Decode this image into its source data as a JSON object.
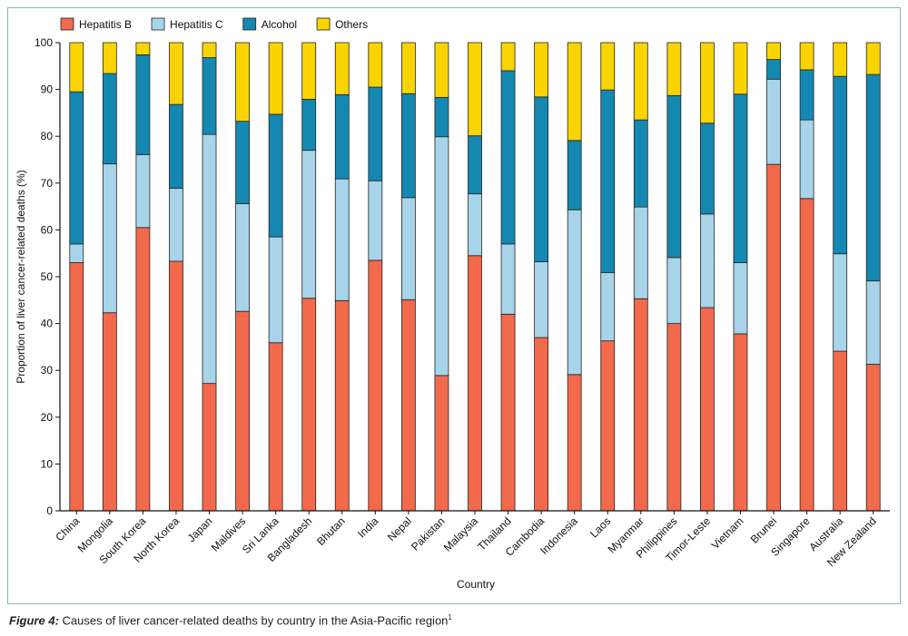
{
  "chart_data": {
    "type": "bar",
    "stacked": true,
    "xlabel": "Country",
    "ylabel": "Proportion of liver cancer-related deaths (%)",
    "ylim": [
      0,
      100
    ],
    "yticks": [
      0,
      10,
      20,
      30,
      40,
      50,
      60,
      70,
      80,
      90,
      100
    ],
    "legend_position": "top-left",
    "categories": [
      "China",
      "Mongolia",
      "South Korea",
      "North Korea",
      "Japan",
      "Maldives",
      "Sri Lanka",
      "Bangladesh",
      "Bhutan",
      "India",
      "Nepal",
      "Pakistan",
      "Malaysia",
      "Thailand",
      "Cambodia",
      "Indonesia",
      "Laos",
      "Myanmar",
      "Philippines",
      "Timor-Leste",
      "Vietnam",
      "Brunei",
      "Singapore",
      "Australia",
      "New Zealand"
    ],
    "series": [
      {
        "name": "Hepatitis B",
        "color": "#f26a4b",
        "values": [
          53.0,
          42.3,
          60.5,
          53.3,
          27.2,
          42.6,
          35.9,
          45.4,
          44.9,
          53.5,
          45.1,
          28.9,
          54.5,
          42.0,
          37.0,
          29.1,
          36.3,
          45.3,
          40.0,
          43.4,
          37.8,
          74.0,
          66.7,
          34.1,
          31.3
        ]
      },
      {
        "name": "Hepatitis C",
        "color": "#a8d4ea",
        "values": [
          4.0,
          31.8,
          15.6,
          15.6,
          53.2,
          23.0,
          22.6,
          31.6,
          26.0,
          17.0,
          21.8,
          51.0,
          13.2,
          15.0,
          16.2,
          35.2,
          14.6,
          19.6,
          14.1,
          20.0,
          15.2,
          18.2,
          16.8,
          20.8,
          17.8
        ]
      },
      {
        "name": "Alcohol",
        "color": "#1488b0",
        "values": [
          32.5,
          19.3,
          21.3,
          17.9,
          16.4,
          17.6,
          26.2,
          10.9,
          18.0,
          20.0,
          22.2,
          8.4,
          12.4,
          37.0,
          35.2,
          14.8,
          39.0,
          18.6,
          34.6,
          19.4,
          36.0,
          4.2,
          10.7,
          37.9,
          44.1
        ]
      },
      {
        "name": "Others",
        "color": "#fad400",
        "values": [
          10.5,
          6.6,
          2.6,
          13.2,
          3.2,
          16.8,
          15.3,
          12.1,
          11.1,
          9.5,
          10.9,
          11.7,
          19.9,
          6.0,
          11.6,
          20.9,
          10.1,
          16.5,
          11.3,
          17.2,
          11.0,
          3.6,
          5.8,
          7.2,
          6.8
        ]
      }
    ]
  },
  "caption": {
    "figure_label": "Figure 4:",
    "text": " Causes of liver cancer-related deaths by country in the Asia-Pacific region",
    "reference": "1"
  }
}
